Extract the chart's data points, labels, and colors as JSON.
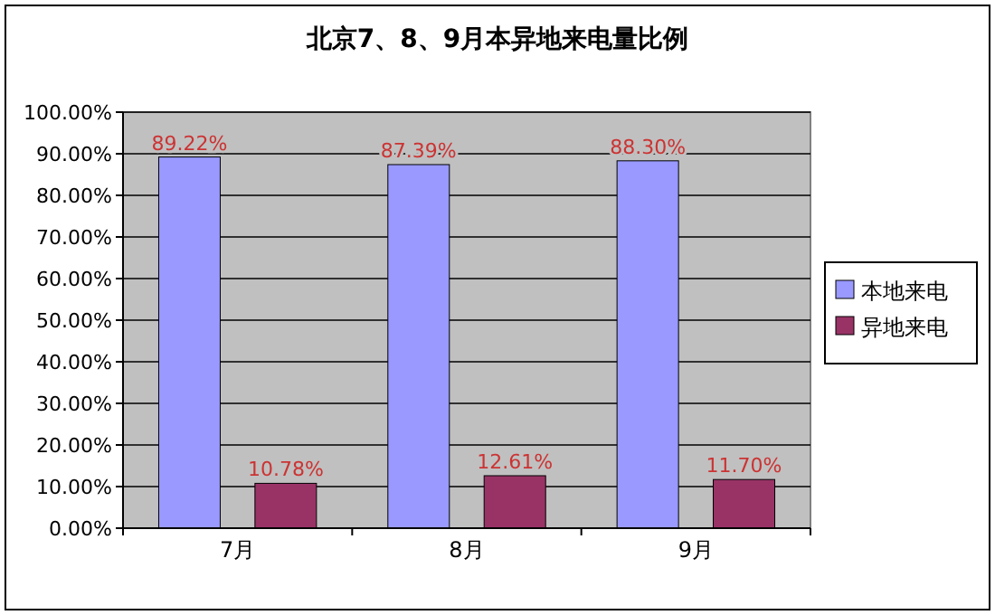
{
  "chart_data": {
    "type": "bar",
    "title": "北京7、8、9月本异地来电量比例",
    "categories": [
      "7月",
      "8月",
      "9月"
    ],
    "series": [
      {
        "name": "本地来电",
        "color": "#9999ff",
        "values": [
          89.22,
          87.39,
          88.3
        ],
        "value_labels": [
          "89.22%",
          "87.39%",
          "88.30%"
        ]
      },
      {
        "name": "异地来电",
        "color": "#993366",
        "values": [
          10.78,
          12.61,
          11.7
        ],
        "value_labels": [
          "10.78%",
          "12.61%",
          "11.70%"
        ]
      }
    ],
    "ylim": [
      0,
      100
    ],
    "yticks": [
      {
        "value": 0,
        "label": "0.00%"
      },
      {
        "value": 10,
        "label": "10.00%"
      },
      {
        "value": 20,
        "label": "20.00%"
      },
      {
        "value": 30,
        "label": "30.00%"
      },
      {
        "value": 40,
        "label": "40.00%"
      },
      {
        "value": 50,
        "label": "50.00%"
      },
      {
        "value": 60,
        "label": "60.00%"
      },
      {
        "value": 70,
        "label": "70.00%"
      },
      {
        "value": 80,
        "label": "80.00%"
      },
      {
        "value": 90,
        "label": "90.00%"
      },
      {
        "value": 100,
        "label": "100.00%"
      }
    ],
    "grid": "y",
    "legend": "right"
  }
}
